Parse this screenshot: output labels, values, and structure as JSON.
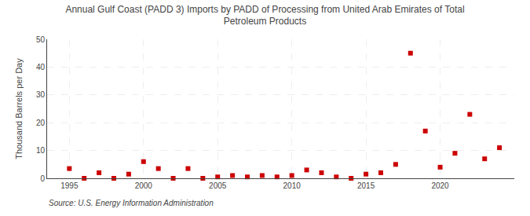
{
  "chart_data": {
    "type": "scatter",
    "title": "Annual Gulf Coast (PADD 3) Imports by PADD of Processing from United Arab Emirates of Total\nPetroleum Products",
    "ylabel": "Thousand Barrels per Day",
    "annotations": [
      "Source: U.S. Energy Information Administration"
    ],
    "x": [
      1995,
      1996,
      1997,
      1998,
      1999,
      2000,
      2001,
      2002,
      2003,
      2004,
      2005,
      2006,
      2007,
      2008,
      2009,
      2010,
      2011,
      2012,
      2013,
      2014,
      2015,
      2016,
      2017,
      2018,
      2019,
      2020,
      2021,
      2022,
      2023,
      2024
    ],
    "values": [
      3.5,
      0.0,
      2.0,
      0.0,
      1.5,
      6.0,
      3.5,
      0.0,
      3.5,
      0.0,
      0.5,
      1.0,
      0.5,
      1.0,
      0.5,
      1.0,
      3.0,
      2.0,
      0.5,
      0.0,
      1.5,
      2.0,
      5.0,
      45.0,
      17.0,
      4.0,
      9.0,
      23.0,
      7.0,
      11.0
    ],
    "color": "#cc0000",
    "marker": "square",
    "xlim": [
      1993.5,
      2025
    ],
    "xticks": [
      1995,
      2000,
      2005,
      2010,
      2015,
      2020
    ],
    "ylim": [
      0,
      50
    ],
    "yticks": [
      0,
      10,
      20,
      30,
      40,
      50
    ],
    "grid": true
  }
}
